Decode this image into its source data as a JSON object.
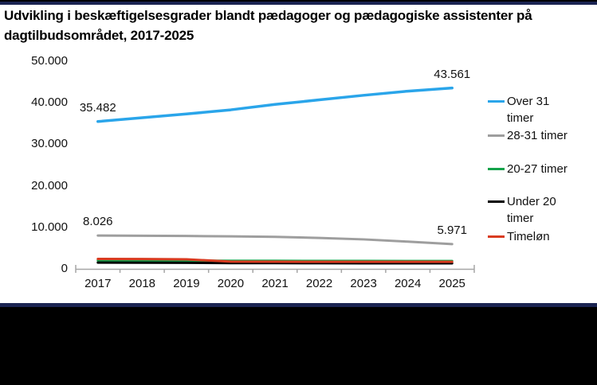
{
  "page": {
    "title_line1": "Udvikling i beskæftigelsesgrader blandt pædagoger og pædagogiske assistenter på",
    "title_line2": "dagtilbudsområdet, 2017-2025"
  },
  "colors": {
    "accent_navy": "#1B2452",
    "axis_gray": "#A6A6A6",
    "text_black": "#111111"
  },
  "chart_data": {
    "type": "line",
    "title": "Udvikling i beskæftigelsesgrader blandt pædagoger og pædagogiske assistenter på dagtilbudsområdet, 2017-2025",
    "categories": [
      "2017",
      "2018",
      "2019",
      "2020",
      "2021",
      "2022",
      "2023",
      "2024",
      "2025"
    ],
    "ylim": [
      0,
      50000
    ],
    "grid": false,
    "legend_position": "right",
    "y_ticks": [
      {
        "value": 0,
        "label": "0"
      },
      {
        "value": 10000,
        "label": "10.000"
      },
      {
        "value": 20000,
        "label": "20.000"
      },
      {
        "value": 30000,
        "label": "30.000"
      },
      {
        "value": 40000,
        "label": "40.000"
      },
      {
        "value": 50000,
        "label": "50.000"
      }
    ],
    "series": [
      {
        "name": "Over 31 timer",
        "color": "#2AA5EA",
        "width": 3.5,
        "values": [
          35482,
          36400,
          37300,
          38300,
          39600,
          40700,
          41800,
          42800,
          43561
        ]
      },
      {
        "name": "28-31 timer",
        "color": "#9E9E9E",
        "width": 3,
        "values": [
          8026,
          7980,
          7920,
          7830,
          7700,
          7450,
          7100,
          6550,
          5971
        ]
      },
      {
        "name": "20-27 timer",
        "color": "#13A24A",
        "width": 3,
        "values": [
          2000,
          2000,
          1980,
          1950,
          1930,
          1920,
          1910,
          1900,
          1900
        ]
      },
      {
        "name": "Under 20 timer",
        "color": "#000000",
        "width": 3,
        "values": [
          1500,
          1490,
          1470,
          1400,
          1380,
          1360,
          1350,
          1340,
          1350
        ]
      },
      {
        "name": "Timeløn",
        "color": "#D93B20",
        "width": 3,
        "values": [
          2400,
          2380,
          2300,
          1750,
          1720,
          1700,
          1700,
          1690,
          1700
        ]
      }
    ],
    "data_labels": [
      {
        "series_index": 0,
        "point_index": 0,
        "text": "35.482"
      },
      {
        "series_index": 0,
        "point_index": 8,
        "text": "43.561"
      },
      {
        "series_index": 1,
        "point_index": 0,
        "text": "8.026"
      },
      {
        "series_index": 1,
        "point_index": 8,
        "text": "5.971"
      }
    ]
  }
}
